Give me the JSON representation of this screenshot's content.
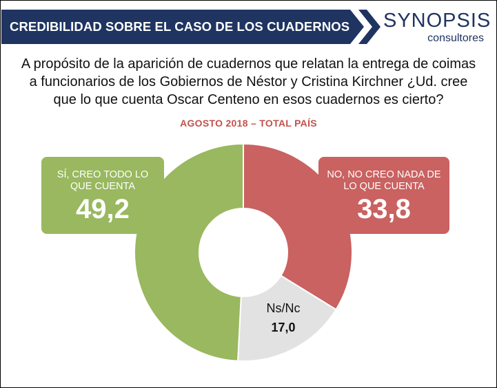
{
  "header": {
    "title": "CREDIBILIDAD SOBRE EL CASO DE LOS CUADERNOS",
    "banner_color": "#1f3461",
    "logo_text": "SYNOPSIS",
    "logo_subtext": "consultores"
  },
  "question": {
    "lines": [
      "A propósito de la aparición de cuadernos que relatan la entrega de coimas",
      "a funcionarios de los Gobiernos de Néstor y Cristina Kirchner ¿Ud. cree",
      "que lo que cuenta Oscar Centeno en esos cuadernos es cierto?"
    ]
  },
  "chart_data": {
    "type": "pie",
    "variant": "donut",
    "subtitle": "AGOSTO 2018 – TOTAL PAÍS",
    "slices": [
      {
        "label": "NO, NO CREO NADA DE LO QUE CUENTA",
        "label_lines": [
          "NO, NO CREO NADA DE",
          "LO QUE CUENTA"
        ],
        "value": 33.8,
        "display": "33,8",
        "color": "#c96260"
      },
      {
        "label": "Ns/Nc",
        "label_lines": [
          "Ns/Nc"
        ],
        "value": 17.0,
        "display": "17,0",
        "color": "#e2e2e2"
      },
      {
        "label": "SÍ, CREO TODO LO QUE CUENTA",
        "label_lines": [
          "SÍ, CREO TODO LO",
          "QUE CUENTA"
        ],
        "value": 49.2,
        "display": "49,2",
        "color": "#99b85f"
      }
    ],
    "start": "top",
    "direction": "clockwise"
  }
}
